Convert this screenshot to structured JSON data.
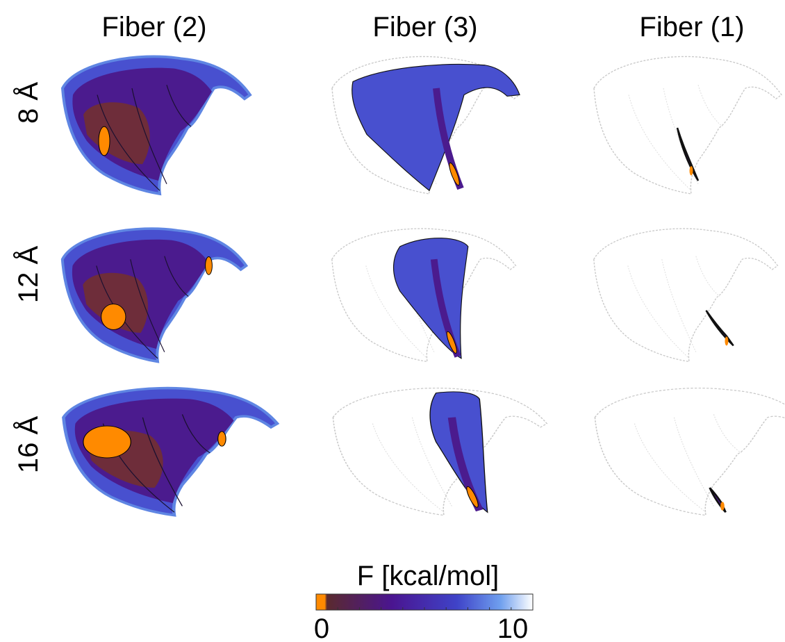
{
  "chart_data": {
    "type": "heatmap",
    "columns": [
      "Fiber (2)",
      "Fiber (3)",
      "Fiber (1)"
    ],
    "rows": [
      "8 Å",
      "12 Å",
      "16 Å"
    ],
    "colorbar": {
      "label": "F [kcal/mol]",
      "min": 0,
      "max": 10,
      "tick_labels": [
        "0",
        "10"
      ],
      "colors": [
        "#ff8a00",
        "#5a2a2e",
        "#4a1590",
        "#3f43c8",
        "#5f8ce6",
        "#bfe1fb",
        "#ffffff"
      ]
    },
    "panel_colors": {
      "minimum": "#ff8a00",
      "low": "#6e2d3a",
      "mid": "#4b1b8e",
      "high": "#4850cf",
      "edge": "#5f86e3",
      "outline": "#c8c8c8"
    }
  }
}
